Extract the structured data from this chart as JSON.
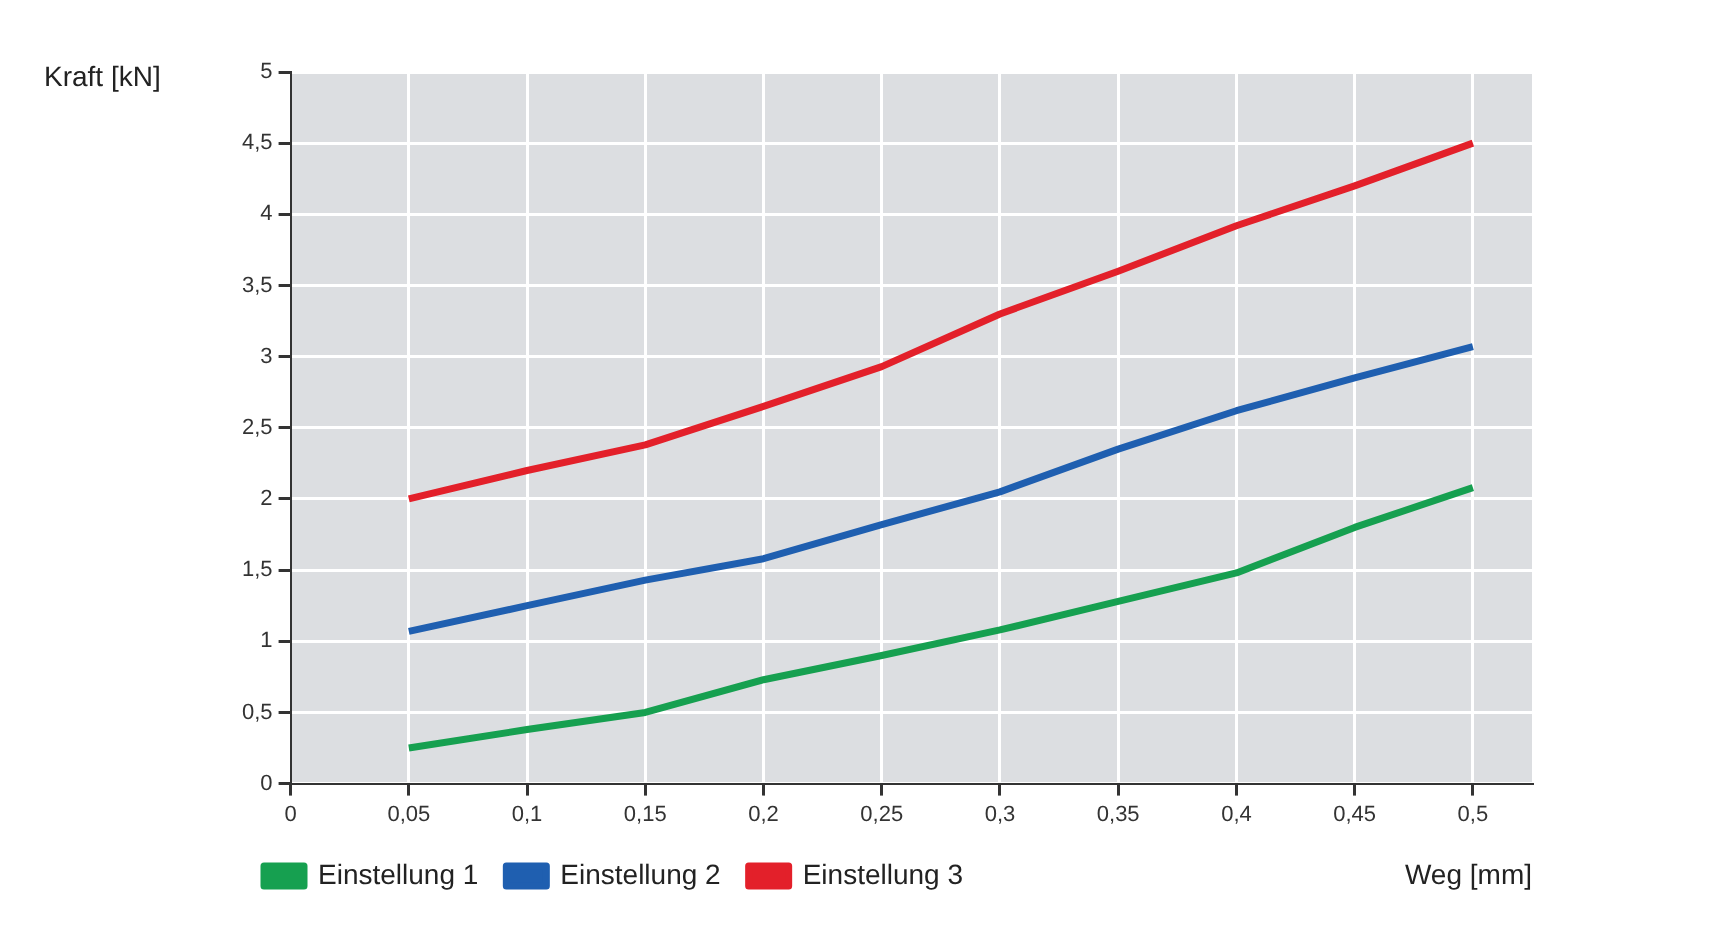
{
  "chart_data": {
    "type": "line",
    "xlabel": "Weg [mm]",
    "ylabel": "Kraft [kN]",
    "x": [
      0.05,
      0.1,
      0.15,
      0.2,
      0.25,
      0.3,
      0.35,
      0.4,
      0.45,
      0.5
    ],
    "series": [
      {
        "name": "Einstellung 1",
        "color": "#16a050",
        "values": [
          0.25,
          0.38,
          0.5,
          0.73,
          0.9,
          1.08,
          1.28,
          1.48,
          1.8,
          2.08
        ]
      },
      {
        "name": "Einstellung 2",
        "color": "#1f5fb0",
        "values": [
          1.07,
          1.25,
          1.43,
          1.58,
          1.82,
          2.05,
          2.35,
          2.62,
          2.85,
          3.07
        ]
      },
      {
        "name": "Einstellung 3",
        "color": "#e3202a",
        "values": [
          2.0,
          2.2,
          2.38,
          2.65,
          2.93,
          3.3,
          3.6,
          3.92,
          4.2,
          4.5
        ]
      }
    ],
    "xlim": [
      0,
      0.525
    ],
    "xticks": [
      0,
      {
        "value": 0.05,
        "label": "0,05"
      },
      {
        "value": 0.1,
        "label": "0,1"
      },
      {
        "value": 0.15,
        "label": "0,15"
      },
      {
        "value": 0.2,
        "label": "0,2"
      },
      {
        "value": 0.25,
        "label": "0,25"
      },
      {
        "value": 0.3,
        "label": "0,3"
      },
      {
        "value": 0.35,
        "label": "0,35"
      },
      {
        "value": 0.4,
        "label": "0,4"
      },
      {
        "value": 0.45,
        "label": "0,45"
      },
      {
        "value": 0.5,
        "label": "0,5"
      }
    ],
    "ylim": [
      0,
      5
    ],
    "yticks": [
      0,
      {
        "value": 0.5,
        "label": "0,5"
      },
      1,
      {
        "value": 1.5,
        "label": "1,5"
      },
      2,
      {
        "value": 2.5,
        "label": "2,5"
      },
      3,
      {
        "value": 3.5,
        "label": "3,5"
      },
      4,
      {
        "value": 4.5,
        "label": "4,5"
      },
      5
    ],
    "grid": true,
    "legend": "bottom",
    "marker": "none",
    "line_style": "solid"
  }
}
